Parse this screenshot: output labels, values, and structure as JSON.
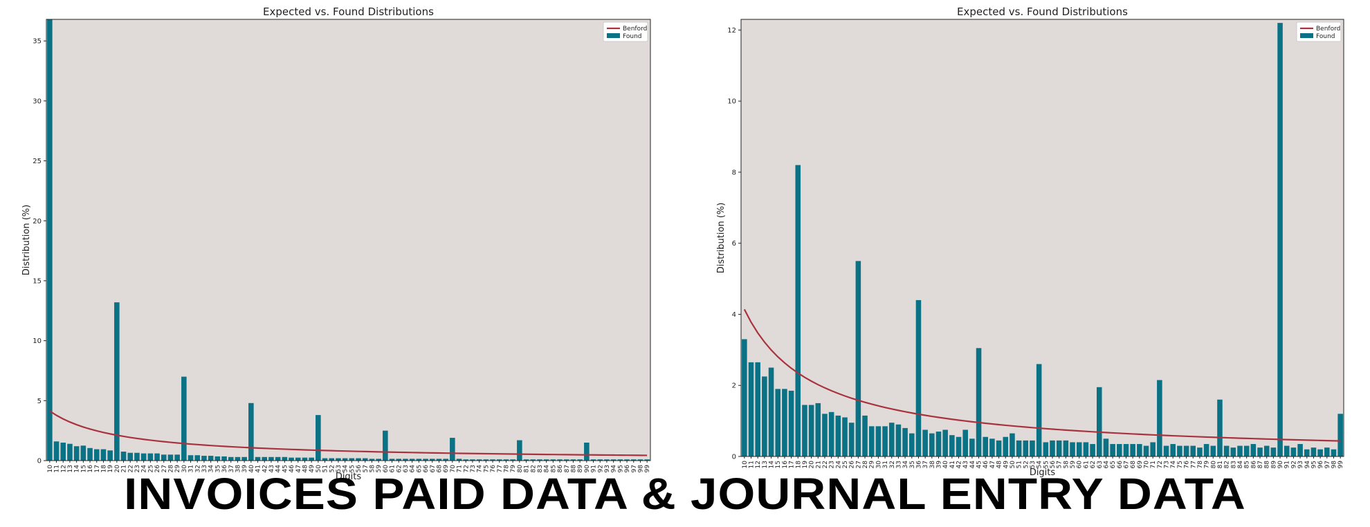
{
  "banner": {
    "text": "INVOICES PAID DATA & JOURNAL ENTRY DATA"
  },
  "chart_data": [
    {
      "type": "bar",
      "title": "Expected vs. Found Distributions",
      "xlabel": "Digits",
      "ylabel": "Distribution (%)",
      "ylim": [
        0,
        36.8
      ],
      "yticks": [
        0,
        5,
        10,
        15,
        20,
        25,
        30,
        35
      ],
      "legend": {
        "position": "top-right",
        "entries": [
          "Benford",
          "Found"
        ]
      },
      "categories": [
        "10",
        "11",
        "12",
        "13",
        "14",
        "15",
        "16",
        "17",
        "18",
        "19",
        "20",
        "21",
        "22",
        "23",
        "24",
        "25",
        "26",
        "27",
        "28",
        "29",
        "30",
        "31",
        "32",
        "33",
        "34",
        "35",
        "36",
        "37",
        "38",
        "39",
        "40",
        "41",
        "42",
        "43",
        "44",
        "45",
        "46",
        "47",
        "48",
        "49",
        "50",
        "51",
        "52",
        "53",
        "54",
        "55",
        "56",
        "57",
        "58",
        "59",
        "60",
        "61",
        "62",
        "63",
        "64",
        "65",
        "66",
        "67",
        "68",
        "69",
        "70",
        "71",
        "72",
        "73",
        "74",
        "75",
        "76",
        "77",
        "78",
        "79",
        "80",
        "81",
        "82",
        "83",
        "84",
        "85",
        "86",
        "87",
        "88",
        "89",
        "90",
        "91",
        "92",
        "93",
        "94",
        "95",
        "96",
        "97",
        "98",
        "99"
      ],
      "series": [
        {
          "name": "Found",
          "kind": "bar",
          "color": "#0b7285",
          "values": [
            36.8,
            1.6,
            1.5,
            1.4,
            1.2,
            1.25,
            1.05,
            0.95,
            0.95,
            0.85,
            13.2,
            0.75,
            0.65,
            0.65,
            0.6,
            0.6,
            0.6,
            0.5,
            0.5,
            0.5,
            7.0,
            0.45,
            0.45,
            0.4,
            0.4,
            0.35,
            0.35,
            0.3,
            0.3,
            0.3,
            4.8,
            0.3,
            0.3,
            0.3,
            0.3,
            0.3,
            0.25,
            0.25,
            0.25,
            0.25,
            3.8,
            0.2,
            0.2,
            0.2,
            0.2,
            0.2,
            0.2,
            0.2,
            0.15,
            0.15,
            2.5,
            0.15,
            0.15,
            0.15,
            0.15,
            0.15,
            0.15,
            0.15,
            0.15,
            0.15,
            1.9,
            0.15,
            0.1,
            0.1,
            0.1,
            0.1,
            0.1,
            0.1,
            0.1,
            0.1,
            1.7,
            0.1,
            0.1,
            0.1,
            0.1,
            0.1,
            0.1,
            0.1,
            0.1,
            0.1,
            1.5,
            0.1,
            0.1,
            0.1,
            0.1,
            0.1,
            0.1,
            0.1,
            0.1,
            0.1
          ]
        },
        {
          "name": "Benford",
          "kind": "line",
          "color": "#a8323e",
          "formula": "log10(1+1/d)*100"
        }
      ]
    },
    {
      "type": "bar",
      "title": "Expected vs. Found Distributions",
      "xlabel": "Digits",
      "ylabel": "Distribution (%)",
      "ylim": [
        0,
        12.3
      ],
      "yticks": [
        0,
        2,
        4,
        6,
        8,
        10,
        12
      ],
      "legend": {
        "position": "top-right",
        "entries": [
          "Benford",
          "Found"
        ]
      },
      "categories": [
        "10",
        "11",
        "12",
        "13",
        "14",
        "15",
        "16",
        "17",
        "18",
        "19",
        "20",
        "21",
        "22",
        "23",
        "24",
        "25",
        "26",
        "27",
        "28",
        "29",
        "30",
        "31",
        "32",
        "33",
        "34",
        "35",
        "36",
        "37",
        "38",
        "39",
        "40",
        "41",
        "42",
        "43",
        "44",
        "45",
        "46",
        "47",
        "48",
        "49",
        "50",
        "51",
        "52",
        "53",
        "54",
        "55",
        "56",
        "57",
        "58",
        "59",
        "60",
        "61",
        "62",
        "63",
        "64",
        "65",
        "66",
        "67",
        "68",
        "69",
        "70",
        "71",
        "72",
        "73",
        "74",
        "75",
        "76",
        "77",
        "78",
        "79",
        "80",
        "81",
        "82",
        "83",
        "84",
        "85",
        "86",
        "87",
        "88",
        "89",
        "90",
        "91",
        "92",
        "93",
        "94",
        "95",
        "96",
        "97",
        "98",
        "99"
      ],
      "series": [
        {
          "name": "Found",
          "kind": "bar",
          "color": "#0b7285",
          "values": [
            3.3,
            2.65,
            2.65,
            2.25,
            2.5,
            1.9,
            1.9,
            1.85,
            8.2,
            1.45,
            1.45,
            1.5,
            1.2,
            1.25,
            1.15,
            1.1,
            0.95,
            5.5,
            1.15,
            0.85,
            0.85,
            0.85,
            0.95,
            0.9,
            0.8,
            0.65,
            4.4,
            0.75,
            0.65,
            0.7,
            0.75,
            0.6,
            0.55,
            0.75,
            0.5,
            3.05,
            0.55,
            0.5,
            0.45,
            0.55,
            0.65,
            0.45,
            0.45,
            0.45,
            2.6,
            0.4,
            0.45,
            0.45,
            0.45,
            0.4,
            0.4,
            0.4,
            0.35,
            1.95,
            0.5,
            0.35,
            0.35,
            0.35,
            0.35,
            0.35,
            0.3,
            0.4,
            2.15,
            0.3,
            0.35,
            0.3,
            0.3,
            0.3,
            0.25,
            0.35,
            0.3,
            1.6,
            0.3,
            0.25,
            0.3,
            0.3,
            0.35,
            0.25,
            0.3,
            0.25,
            12.2,
            0.3,
            0.25,
            0.35,
            0.2,
            0.25,
            0.2,
            0.25,
            0.2,
            1.2
          ]
        },
        {
          "name": "Benford",
          "kind": "line",
          "color": "#a8323e",
          "formula": "log10(1+1/d)*100"
        }
      ]
    }
  ]
}
